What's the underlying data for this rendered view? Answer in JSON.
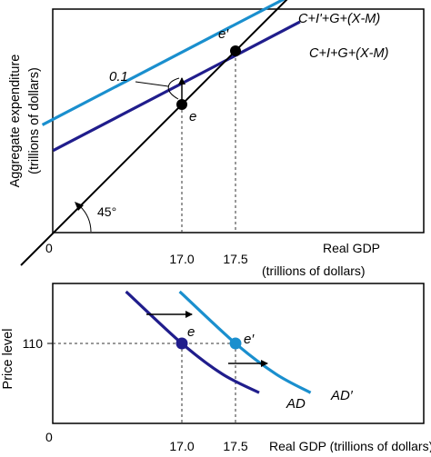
{
  "chart_data": [
    {
      "type": "line",
      "title": "",
      "ylabel": "Aggregate expenditure",
      "ylabel_units": "(trillions of dollars)",
      "xlabel": "Real GDP",
      "xlabel_units": "(trillions of dollars)",
      "origin_label": "0",
      "x_ticks": [
        "17.0",
        "17.5"
      ],
      "xlim": [
        15.5,
        18.3
      ],
      "ylim": [
        15.5,
        18.3
      ],
      "series": [
        {
          "name": "C+I'+G+(X-M)",
          "color": "#1a8fce",
          "x": [
            15.7,
            18.1
          ],
          "y": [
            16.81,
            18.06
          ]
        },
        {
          "name": "C+I+G+(X-M)",
          "color": "#201d8c",
          "x": [
            15.8,
            18.1
          ],
          "y": [
            16.57,
            17.77
          ]
        },
        {
          "name": "45° line",
          "color": "#000000",
          "x": [
            15.5,
            18.3
          ],
          "y": [
            15.5,
            18.3
          ]
        }
      ],
      "points": [
        {
          "label": "e",
          "x": 17.0,
          "y": 17.0
        },
        {
          "label": "e′",
          "x": 17.5,
          "y": 17.5
        }
      ],
      "annotations": {
        "shift_label": "0.1",
        "angle_label": "45°"
      }
    },
    {
      "type": "line",
      "title": "",
      "ylabel": "Price level",
      "xlabel": "Real GDP (trillions of dollars)",
      "origin_label": "0",
      "x_ticks": [
        "17.0",
        "17.5"
      ],
      "y_ticks": [
        "110"
      ],
      "series": [
        {
          "name": "AD",
          "color": "#201d8c",
          "x": [
            16.48,
            17.0,
            17.38,
            17.72
          ],
          "y": [
            120.1,
            110.0,
            104.0,
            100.4
          ]
        },
        {
          "name": "AD′",
          "color": "#1a8fce",
          "x": [
            16.98,
            17.5,
            17.88,
            18.2
          ],
          "y": [
            120.1,
            110.0,
            104.0,
            100.4
          ]
        }
      ],
      "points": [
        {
          "label": "e",
          "x": 17.0,
          "y": 110
        },
        {
          "label": "e′",
          "x": 17.5,
          "y": 110
        }
      ]
    }
  ]
}
